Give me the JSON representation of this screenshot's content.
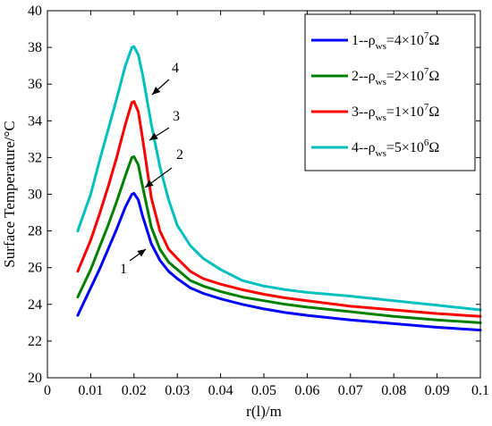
{
  "chart_data": {
    "type": "line",
    "xlabel": "r(l)/m",
    "ylabel": "Surface Temperature/°C",
    "xlim": [
      0,
      0.1
    ],
    "ylim": [
      20,
      40
    ],
    "xticks": [
      0,
      0.01,
      0.02,
      0.03,
      0.04,
      0.05,
      0.06,
      0.07,
      0.08,
      0.09,
      0.1
    ],
    "xtick_labels": [
      "0",
      "0.01",
      "0.02",
      "0.03",
      "0.04",
      "0.05",
      "0.06",
      "0.07",
      "0.08",
      "0.09",
      "0.1"
    ],
    "yticks": [
      20,
      22,
      24,
      26,
      28,
      30,
      32,
      34,
      36,
      38,
      40
    ],
    "ytick_labels": [
      "20",
      "22",
      "24",
      "26",
      "28",
      "30",
      "32",
      "34",
      "36",
      "38",
      "40"
    ],
    "grid": false,
    "legend_position": "top-right",
    "series": [
      {
        "name": "1--ρws=4×10^7Ω",
        "legend": {
          "prefix": "1--ρ",
          "sub": "ws",
          "mid": "=4×10",
          "sup": "7",
          "suffix": "Ω"
        },
        "color": "#0000ff",
        "annotation": "1",
        "x": [
          0.007,
          0.01,
          0.012,
          0.014,
          0.016,
          0.018,
          0.0195,
          0.02,
          0.021,
          0.022,
          0.024,
          0.026,
          0.028,
          0.03,
          0.033,
          0.036,
          0.04,
          0.045,
          0.05,
          0.055,
          0.06,
          0.07,
          0.08,
          0.09,
          0.1
        ],
        "y": [
          23.4,
          24.9,
          25.9,
          27.0,
          28.1,
          29.3,
          30.0,
          30.05,
          29.7,
          28.8,
          27.3,
          26.4,
          25.8,
          25.4,
          24.9,
          24.6,
          24.3,
          24.0,
          23.75,
          23.55,
          23.4,
          23.15,
          22.95,
          22.75,
          22.6
        ]
      },
      {
        "name": "2--ρws=2×10^7Ω",
        "legend": {
          "prefix": "2--ρ",
          "sub": "ws",
          "mid": "=2×10",
          "sup": "7",
          "suffix": "Ω"
        },
        "color": "#008000",
        "annotation": "2",
        "x": [
          0.007,
          0.01,
          0.012,
          0.014,
          0.016,
          0.018,
          0.0195,
          0.02,
          0.021,
          0.022,
          0.024,
          0.026,
          0.028,
          0.03,
          0.033,
          0.036,
          0.04,
          0.045,
          0.05,
          0.055,
          0.06,
          0.07,
          0.08,
          0.09,
          0.1
        ],
        "y": [
          24.4,
          25.9,
          27.1,
          28.3,
          29.6,
          31.0,
          32.0,
          32.05,
          31.6,
          30.4,
          28.2,
          27.0,
          26.3,
          25.9,
          25.3,
          25.0,
          24.7,
          24.4,
          24.2,
          24.0,
          23.85,
          23.6,
          23.35,
          23.15,
          23.0
        ]
      },
      {
        "name": "3--ρws=1×10^7Ω",
        "legend": {
          "prefix": "3--ρ",
          "sub": "ws",
          "mid": "=1×10",
          "sup": "7",
          "suffix": "Ω"
        },
        "color": "#ff0000",
        "annotation": "3",
        "x": [
          0.007,
          0.01,
          0.012,
          0.014,
          0.016,
          0.018,
          0.0195,
          0.02,
          0.021,
          0.022,
          0.024,
          0.026,
          0.028,
          0.03,
          0.033,
          0.036,
          0.04,
          0.045,
          0.05,
          0.055,
          0.06,
          0.07,
          0.08,
          0.09,
          0.1
        ],
        "y": [
          25.8,
          27.5,
          28.9,
          30.4,
          32.0,
          33.8,
          35.0,
          35.05,
          34.5,
          33.0,
          29.8,
          28.0,
          27.0,
          26.5,
          25.8,
          25.4,
          25.1,
          24.8,
          24.55,
          24.35,
          24.2,
          23.9,
          23.7,
          23.5,
          23.35
        ]
      },
      {
        "name": "4--ρws=5×10^6Ω",
        "legend": {
          "prefix": "4--ρ",
          "sub": "ws",
          "mid": "=5×10",
          "sup": "6",
          "suffix": "Ω"
        },
        "color": "#00bfbf",
        "annotation": "4",
        "x": [
          0.007,
          0.01,
          0.012,
          0.014,
          0.016,
          0.018,
          0.0195,
          0.02,
          0.021,
          0.022,
          0.024,
          0.026,
          0.028,
          0.03,
          0.033,
          0.036,
          0.04,
          0.045,
          0.05,
          0.055,
          0.06,
          0.07,
          0.08,
          0.09,
          0.1
        ],
        "y": [
          28.0,
          30.0,
          31.8,
          33.5,
          35.2,
          37.0,
          38.0,
          38.05,
          37.6,
          36.5,
          33.8,
          31.5,
          29.7,
          28.3,
          27.2,
          26.5,
          25.9,
          25.3,
          25.0,
          24.8,
          24.65,
          24.45,
          24.2,
          23.95,
          23.7
        ]
      }
    ],
    "annotations": [
      {
        "label": "1",
        "series": 0
      },
      {
        "label": "2",
        "series": 1
      },
      {
        "label": "3",
        "series": 2
      },
      {
        "label": "4",
        "series": 3
      }
    ]
  }
}
